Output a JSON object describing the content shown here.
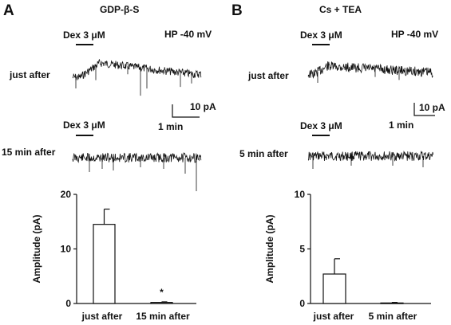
{
  "panels": [
    {
      "letter": "A",
      "condition": "GDP-β-S",
      "holding": "HP -40 mV",
      "dex_label_1": "Dex 3 μM",
      "dex_label_2": "Dex 3 μM",
      "row1_label": "just after",
      "row2_label": "15 min after",
      "scale_y": "10 pA",
      "scale_x": "1 min"
    },
    {
      "letter": "B",
      "condition": "Cs + TEA",
      "holding": "HP -40 mV",
      "dex_label_1": "Dex 3 μM",
      "dex_label_2": "Dex 3 μM",
      "row1_label": "just after",
      "row2_label": "5 min after",
      "scale_y": "10 pA",
      "scale_x": "1 min"
    }
  ],
  "chart_data": [
    {
      "type": "bar",
      "categories": [
        "just after",
        "15 min after"
      ],
      "values": [
        14.5,
        0.2
      ],
      "errors": [
        2.8,
        0.1
      ],
      "significance": [
        "",
        "*"
      ],
      "ylabel": "Amplitude (pA)",
      "ylim": [
        0,
        20
      ],
      "yticks": [
        "0",
        "10",
        "20"
      ],
      "bar_fill": "#ffffff",
      "bar_stroke": "#111111"
    },
    {
      "type": "bar",
      "categories": [
        "just after",
        "5 min after"
      ],
      "values": [
        2.7,
        0.05
      ],
      "errors": [
        1.4,
        0.05
      ],
      "significance": [
        "",
        ""
      ],
      "ylabel": "Amplitude (pA)",
      "ylim": [
        0,
        10
      ],
      "yticks": [
        "0",
        "5",
        "10"
      ],
      "bar_fill": "#ffffff",
      "bar_stroke": "#111111"
    }
  ]
}
